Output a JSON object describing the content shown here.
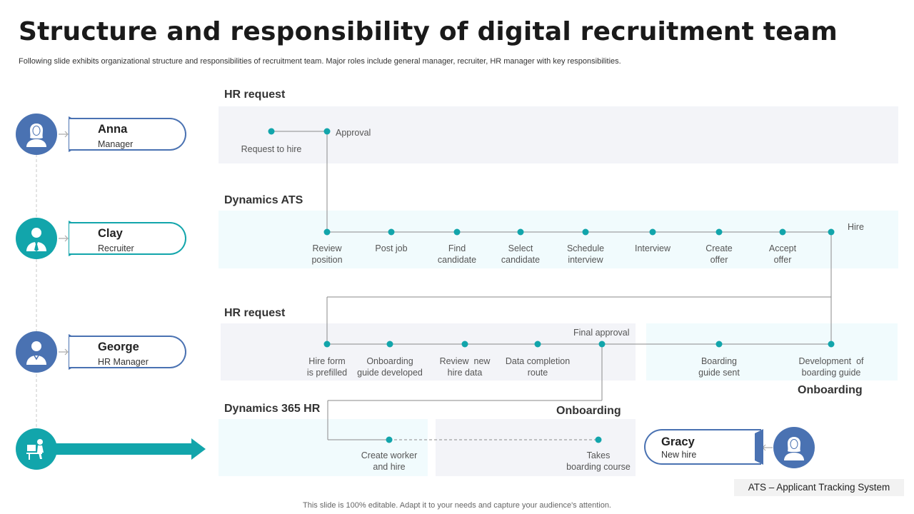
{
  "title": "Structure and responsibility of digital recruitment team",
  "subtitle": "Following slide exhibits organizational structure and responsibilities of recruitment team. Major roles include general manager, recruiter, HR manager with key responsibilities.",
  "footer": "This slide is 100% editable. Adapt it to your needs and capture your audience's attention.",
  "colors": {
    "blue": "#4a72b2",
    "teal": "#12a5ab",
    "line": "#8a8a8a"
  },
  "people": [
    {
      "name": "Anna",
      "role": "Manager",
      "icon": "female-user-icon"
    },
    {
      "name": "Clay",
      "role": "Recruiter",
      "icon": "male-user-tie-icon"
    },
    {
      "name": "George",
      "role": "HR Manager",
      "icon": "male-user-icon"
    },
    {
      "name": "Gracy",
      "role": "New hire",
      "icon": "female-user-icon"
    }
  ],
  "desk_icon": "workstation-icon",
  "sections": {
    "hr_request_1": "HR request",
    "dynamics_ats": "Dynamics ATS",
    "hr_request_2": "HR request",
    "dynamics_365_hr": "Dynamics 365 HR",
    "onboarding_right": "Onboarding",
    "onboarding_center": "Onboarding"
  },
  "hr_request_steps": {
    "request_to_hire": "Request to hire",
    "approval": "Approval"
  },
  "ats_steps": [
    [
      "Review",
      "position"
    ],
    [
      "Post job",
      ""
    ],
    [
      "Find",
      "candidate"
    ],
    [
      "Select",
      "candidate"
    ],
    [
      "Schedule",
      "interview"
    ],
    [
      "Interview",
      ""
    ],
    [
      "Create",
      "offer"
    ],
    [
      "Accept",
      "offer"
    ]
  ],
  "ats_hire": "Hire",
  "hr_request_2_steps": [
    [
      "Hire form",
      "is prefilled"
    ],
    [
      "Onboarding",
      "guide developed"
    ],
    [
      "Review  new",
      "hire data"
    ],
    [
      "Data completion",
      "route"
    ]
  ],
  "final_approval": "Final approval",
  "onboarding_steps": [
    [
      "Boarding",
      "guide sent"
    ],
    [
      "Development  of",
      "boarding guide"
    ]
  ],
  "d365_steps": [
    [
      "Create worker",
      "and hire"
    ],
    [
      "Takes",
      "boarding course"
    ]
  ],
  "legend": "ATS – Applicant Tracking System"
}
